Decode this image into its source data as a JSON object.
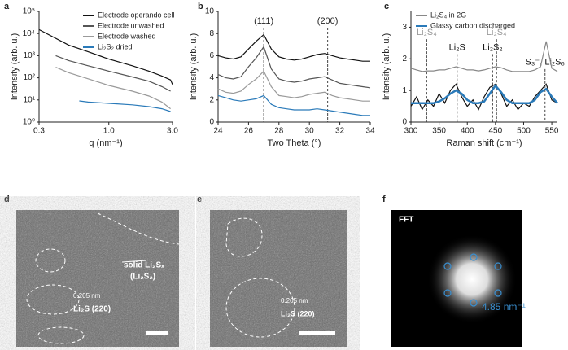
{
  "chart_data": [
    {
      "type": "line",
      "panel": "a",
      "xlabel": "q (nm⁻¹)",
      "ylabel": "Intensity (arb. u.)",
      "xlog": true,
      "ylog": true,
      "legend": "upper right",
      "xlim": [
        0.3,
        3
      ],
      "xticks": [
        0.3,
        {
          "value": 1,
          "label": "1.0"
        },
        {
          "value": 3,
          "label": "3.0"
        }
      ],
      "ylim": [
        1,
        100000
      ],
      "yticks": [
        {
          "value": 1,
          "label": "10⁰"
        },
        {
          "value": 10,
          "label": "10¹"
        },
        {
          "value": 100,
          "label": "10²"
        },
        {
          "value": 1000,
          "label": "10³"
        },
        {
          "value": 10000,
          "label": "10⁴"
        },
        {
          "value": 100000,
          "label": "10⁵"
        }
      ],
      "series": [
        {
          "name": "Electrode operando cell",
          "color": "#111111",
          "x": [
            0.3,
            0.5,
            0.7,
            1.0,
            1.5,
            2.0,
            2.5,
            2.9,
            3.0
          ],
          "values": [
            15000,
            3000,
            1500,
            700,
            350,
            200,
            120,
            80,
            50
          ]
        },
        {
          "name": "Electrode unwashed",
          "color": "#555555",
          "x": [
            0.4,
            0.5,
            0.7,
            1.0,
            1.5,
            2.0,
            2.5,
            2.9
          ],
          "values": [
            1000,
            600,
            350,
            200,
            110,
            70,
            40,
            25
          ]
        },
        {
          "name": "Electrode washed",
          "color": "#9a9a9a",
          "x": [
            0.4,
            0.5,
            0.7,
            1.0,
            1.5,
            2.0,
            2.5,
            2.9
          ],
          "values": [
            300,
            170,
            90,
            45,
            25,
            15,
            8,
            4
          ]
        },
        {
          "name": "Li₂S₂ dried",
          "color": "#2a7ab9",
          "x": [
            0.6,
            0.7,
            1.0,
            1.5,
            2.0,
            2.5,
            2.9
          ],
          "values": [
            9,
            8,
            7,
            6,
            5,
            4,
            3
          ]
        }
      ]
    },
    {
      "type": "line",
      "panel": "b",
      "xlabel": "Two Theta (°)",
      "ylabel": "Intensity (arb. u.)",
      "xlim": [
        24,
        34
      ],
      "xticks": [
        24,
        26,
        28,
        30,
        32,
        34
      ],
      "ylim": [
        0,
        10
      ],
      "yticks": [
        0,
        2,
        4,
        6,
        8,
        10
      ],
      "x": [
        24,
        24.5,
        25,
        25.5,
        26,
        26.5,
        27,
        27.5,
        28,
        28.5,
        29,
        29.5,
        30,
        30.5,
        31,
        31.5,
        32,
        32.5,
        33,
        33.5,
        34
      ],
      "annotations": [
        {
          "text": "(111)",
          "x": 27
        },
        {
          "text": "(200)",
          "x": 31.2
        }
      ],
      "series": [
        {
          "color": "#111111",
          "values": [
            6.0,
            5.8,
            5.7,
            5.9,
            6.6,
            7.3,
            7.9,
            6.6,
            5.9,
            5.7,
            5.6,
            5.7,
            5.9,
            6.1,
            6.2,
            6.0,
            5.8,
            5.7,
            5.6,
            5.5,
            5.5
          ]
        },
        {
          "color": "#555555",
          "values": [
            4.3,
            4.0,
            3.9,
            4.1,
            5.0,
            5.8,
            6.8,
            4.8,
            3.9,
            3.7,
            3.6,
            3.7,
            3.9,
            4.0,
            4.1,
            3.8,
            3.5,
            3.4,
            3.3,
            3.2,
            3.1
          ]
        },
        {
          "color": "#9a9a9a",
          "values": [
            3.0,
            2.7,
            2.6,
            2.8,
            3.4,
            3.9,
            4.6,
            3.2,
            2.4,
            2.3,
            2.2,
            2.3,
            2.5,
            2.6,
            2.7,
            2.4,
            2.2,
            2.1,
            2.0,
            1.9,
            1.9
          ]
        },
        {
          "color": "#2a7ab9",
          "values": [
            2.4,
            2.2,
            2.0,
            1.9,
            2.0,
            2.1,
            2.4,
            1.6,
            1.3,
            1.2,
            1.1,
            1.1,
            1.1,
            1.2,
            1.1,
            1.0,
            0.9,
            0.8,
            0.7,
            0.6,
            0.6
          ]
        }
      ]
    },
    {
      "type": "line",
      "panel": "c",
      "xlabel": "Raman shift (cm⁻¹)",
      "ylabel": "Intensity (arb. u.)",
      "legend": "upper left",
      "xlim": [
        300,
        560
      ],
      "xticks": [
        300,
        350,
        400,
        450,
        500,
        550
      ],
      "ylim": [
        0,
        3.5
      ],
      "yticks": [
        0,
        1,
        2,
        3
      ],
      "x": [
        300,
        310,
        320,
        330,
        340,
        350,
        360,
        370,
        380,
        390,
        400,
        410,
        420,
        430,
        440,
        450,
        460,
        470,
        480,
        490,
        500,
        510,
        520,
        530,
        540,
        550,
        560
      ],
      "annotations": [
        {
          "text": "Li₂S₄",
          "x": 328,
          "color": "#9a9a9a"
        },
        {
          "text": "Li₂S",
          "x": 382,
          "color": "#111111"
        },
        {
          "text": "Li₂S₂",
          "x": 445,
          "color": "#111111"
        },
        {
          "text": "Li₂S₄",
          "x": 452,
          "color": "#9a9a9a"
        },
        {
          "text": "S₃⁻, Li₂S₆",
          "x": 538,
          "color": "#111111"
        }
      ],
      "series": [
        {
          "name": "Li₂S₄ in 2G",
          "color": "#888888",
          "values": [
            1.7,
            1.65,
            1.6,
            1.62,
            1.62,
            1.65,
            1.65,
            1.7,
            1.75,
            1.7,
            1.65,
            1.65,
            1.62,
            1.65,
            1.7,
            1.75,
            1.72,
            1.65,
            1.6,
            1.6,
            1.6,
            1.6,
            1.65,
            1.75,
            2.55,
            1.7,
            1.6
          ]
        },
        {
          "color": "#111111",
          "values": [
            0.5,
            0.8,
            0.4,
            0.7,
            0.5,
            0.9,
            0.6,
            1.0,
            1.2,
            0.8,
            0.5,
            0.7,
            0.4,
            0.8,
            1.1,
            1.2,
            0.9,
            0.5,
            0.7,
            0.4,
            0.6,
            0.5,
            0.8,
            1.0,
            1.2,
            0.7,
            0.6
          ]
        },
        {
          "name": "Glassy carbon discharged",
          "color": "#2a7ab9",
          "values": [
            0.6,
            0.6,
            0.6,
            0.6,
            0.6,
            0.65,
            0.75,
            0.9,
            1.0,
            0.9,
            0.7,
            0.6,
            0.6,
            0.65,
            0.9,
            1.15,
            0.95,
            0.7,
            0.6,
            0.6,
            0.6,
            0.6,
            0.7,
            0.95,
            1.05,
            0.8,
            0.6
          ]
        }
      ]
    }
  ],
  "images": [
    {
      "panel": "d",
      "texts": [
        "solid Li₂Sₓ",
        "(Li₂S₂)",
        "0.205 nm",
        "Li₂S (220)"
      ]
    },
    {
      "panel": "e",
      "texts": [
        "0.205 nm",
        "Li₂S (220)"
      ]
    },
    {
      "panel": "f",
      "texts": [
        "FFT",
        "4.85 nm⁻¹"
      ]
    }
  ]
}
